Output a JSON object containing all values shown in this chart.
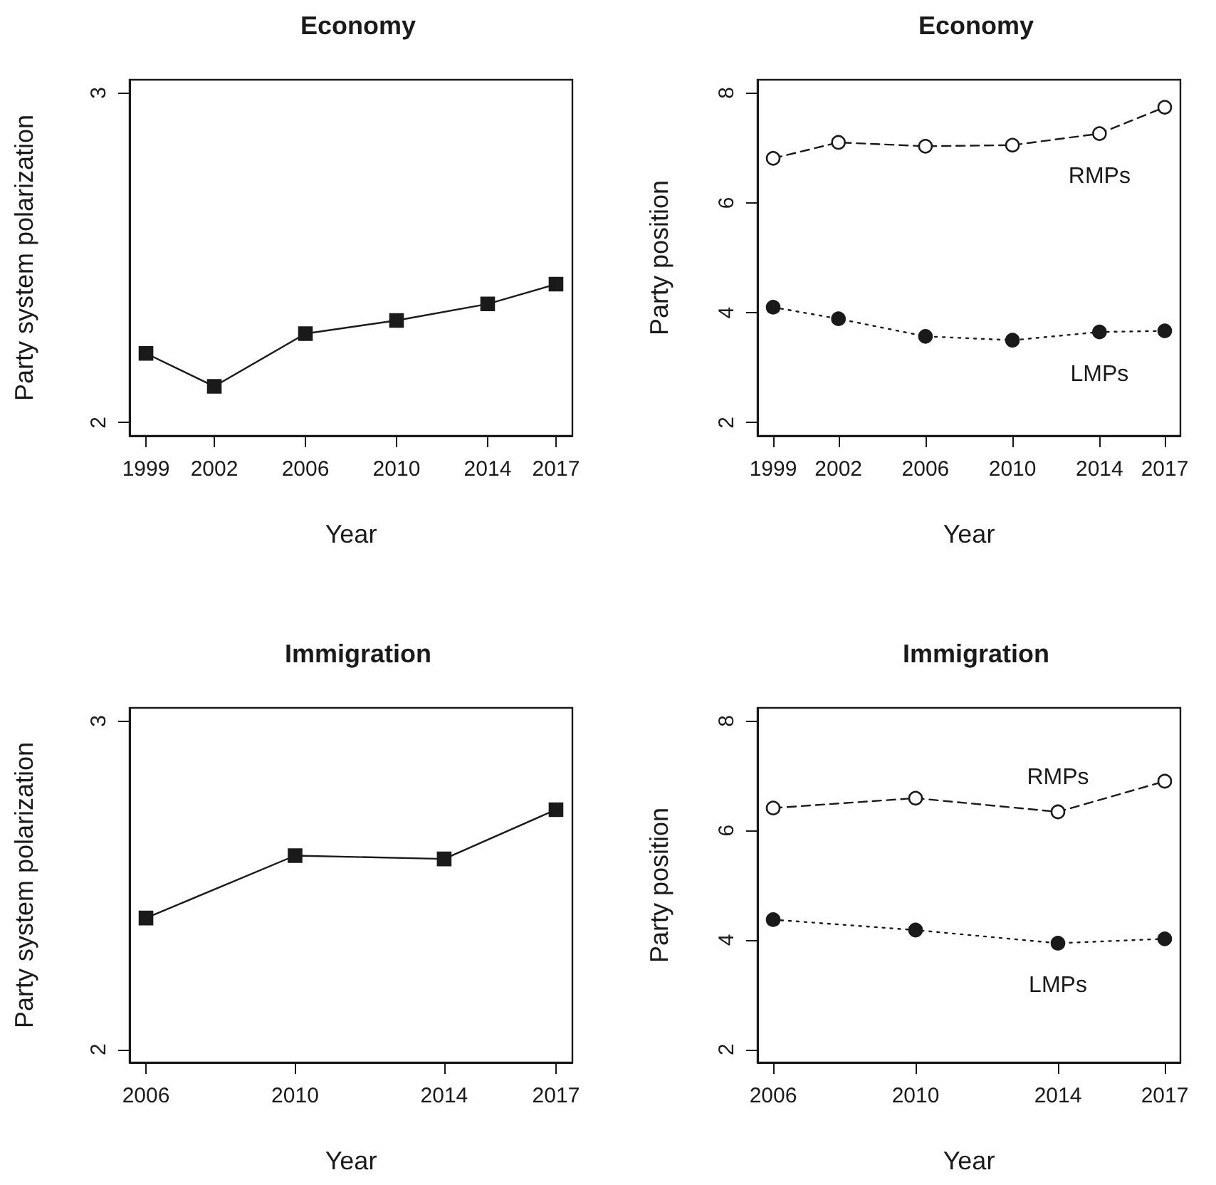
{
  "chart_data": [
    {
      "type": "line",
      "title": "Economy",
      "xlabel": "Year",
      "ylabel": "Party system polarization",
      "x": [
        1999,
        2002,
        2006,
        2010,
        2014,
        2017
      ],
      "xlim": [
        1998.28,
        2017.72
      ],
      "xticks": [
        1999,
        2002,
        2006,
        2010,
        2014,
        2017
      ],
      "ylim": [
        1.96,
        3.04
      ],
      "yticks": [
        2,
        3
      ],
      "grid": false,
      "legend": false,
      "series": [
        {
          "color": "#1a1a1a",
          "marker": "square",
          "line_style": "solid",
          "values": [
            2.21,
            2.11,
            2.27,
            2.31,
            2.36,
            2.42
          ]
        }
      ]
    },
    {
      "type": "line",
      "title": "Economy",
      "xlabel": "Year",
      "ylabel": "Party position",
      "x": [
        1999,
        2002,
        2006,
        2010,
        2014,
        2017
      ],
      "xlim": [
        1998.28,
        2017.72
      ],
      "xticks": [
        1999,
        2002,
        2006,
        2010,
        2014,
        2017
      ],
      "ylim": [
        1.76,
        8.24
      ],
      "yticks": [
        2,
        4,
        6,
        8
      ],
      "grid": false,
      "legend": false,
      "series": [
        {
          "name": "RMPs",
          "color": "#1a1a1a",
          "marker": "open circle",
          "line_style": "dashed",
          "values": [
            6.81,
            7.1,
            7.03,
            7.05,
            7.26,
            7.74
          ]
        },
        {
          "name": "LMPs",
          "color": "#1a1a1a",
          "marker": "circle",
          "line_style": "dotted",
          "values": [
            4.1,
            3.89,
            3.57,
            3.5,
            3.65,
            3.67
          ]
        }
      ]
    },
    {
      "type": "line",
      "title": "Immigration",
      "xlabel": "Year",
      "ylabel": "Party system polarization",
      "x": [
        2006,
        2010,
        2014,
        2017
      ],
      "xlim": [
        2005.56,
        2017.44
      ],
      "xticks": [
        2006,
        2010,
        2014,
        2017
      ],
      "ylim": [
        1.96,
        3.04
      ],
      "yticks": [
        2,
        3
      ],
      "grid": false,
      "legend": false,
      "series": [
        {
          "color": "#1a1a1a",
          "marker": "square",
          "line_style": "solid",
          "values": [
            2.4,
            2.59,
            2.58,
            2.73
          ]
        }
      ]
    },
    {
      "type": "line",
      "title": "Immigration",
      "xlabel": "Year",
      "ylabel": "Party position",
      "x": [
        2006,
        2010,
        2014,
        2017
      ],
      "xlim": [
        2005.56,
        2017.44
      ],
      "xticks": [
        2006,
        2010,
        2014,
        2017
      ],
      "ylim": [
        1.76,
        8.24
      ],
      "yticks": [
        2,
        4,
        6,
        8
      ],
      "grid": false,
      "legend": false,
      "series": [
        {
          "name": "RMPs",
          "color": "#1a1a1a",
          "marker": "open circle",
          "line_style": "dashed",
          "values": [
            6.41,
            6.59,
            6.34,
            6.9
          ]
        },
        {
          "name": "LMPs",
          "color": "#1a1a1a",
          "marker": "circle",
          "line_style": "dotted",
          "values": [
            4.37,
            4.18,
            3.94,
            4.02
          ]
        }
      ]
    }
  ]
}
